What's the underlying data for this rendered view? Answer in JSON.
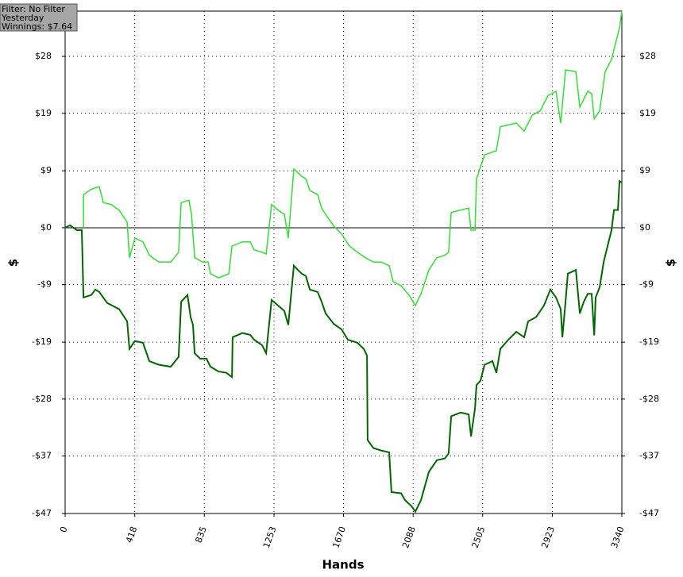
{
  "chart_data": {
    "type": "line",
    "annotations": [
      "Filter: No Filter",
      "Yesterday",
      "Winnings: $7.64"
    ],
    "x_label": "Hands",
    "y_label": "$",
    "xlim": [
      0,
      3340
    ],
    "xticks": [
      0,
      418,
      835,
      1253,
      1670,
      2088,
      2505,
      2923,
      3340
    ],
    "ylim": [
      -46.7,
      35.4
    ],
    "yticks": [
      {
        "value": 28,
        "label": "$28"
      },
      {
        "value": 18.7,
        "label": "$19"
      },
      {
        "value": 9.3,
        "label": "$9"
      },
      {
        "value": 0,
        "label": "$0"
      },
      {
        "value": -9.3,
        "label": "-$9"
      },
      {
        "value": -18.7,
        "label": "-$19"
      },
      {
        "value": -28,
        "label": "-$28"
      },
      {
        "value": -37.3,
        "label": "-$37"
      },
      {
        "value": -46.7,
        "label": "-$47"
      }
    ],
    "grid": true,
    "series": [
      {
        "color": "#33dd33",
        "x": [
          110,
          110,
          157,
          205,
          229,
          276,
          324,
          372,
          386,
          419,
          467,
          505,
          562,
          634,
          681,
          696,
          743,
          758,
          777,
          824,
          858,
          872,
          920,
          982,
          1001,
          1063,
          1110,
          1134,
          1182,
          1206,
          1239,
          1277,
          1315,
          1339,
          1372,
          1420,
          1444,
          1468,
          1515,
          1539,
          1563,
          1611,
          1658,
          1706,
          1754,
          1801,
          1849,
          1896,
          1944,
          1968,
          2016,
          2063,
          2101,
          2135,
          2182,
          2230,
          2278,
          2301,
          2316,
          2373,
          2421,
          2435,
          2459,
          2468,
          2516,
          2587,
          2611,
          2659,
          2707,
          2754,
          2802,
          2850,
          2897,
          2945,
          2973,
          3002,
          3064,
          3088,
          3135,
          3159,
          3174,
          3207,
          3240,
          3278,
          3302,
          3326,
          3340
        ],
        "values": [
          0,
          5.4,
          6.3,
          6.7,
          4.1,
          3.8,
          2.9,
          0.9,
          -4.9,
          -1.7,
          -2.3,
          -4.5,
          -5.6,
          -5.6,
          -4.0,
          4.1,
          4.5,
          2.2,
          -4.9,
          -5.6,
          -5.6,
          -7.5,
          -8.2,
          -7.5,
          -3.0,
          -2.3,
          -2.3,
          -3.6,
          -4.0,
          -4.3,
          3.8,
          2.9,
          2.2,
          -1.7,
          9.6,
          8.4,
          8.0,
          6.1,
          5.4,
          3.2,
          2.2,
          0.3,
          -1.0,
          -3.0,
          -4.0,
          -4.9,
          -5.6,
          -5.6,
          -6.2,
          -8.8,
          -9.5,
          -11.0,
          -12.7,
          -10.8,
          -6.9,
          -4.9,
          -4.5,
          -4.0,
          2.5,
          2.9,
          3.2,
          -0.4,
          -0.4,
          8.0,
          11.9,
          12.6,
          16.5,
          16.8,
          17.1,
          15.8,
          18.4,
          19.1,
          21.6,
          22.3,
          17.1,
          25.8,
          25.5,
          19.7,
          22.3,
          21.9,
          17.8,
          19.1,
          25.5,
          27.5,
          30.1,
          32.7,
          35.4
        ]
      },
      {
        "color": "#006600",
        "x": [
          0,
          29,
          71,
          100,
          110,
          157,
          181,
          205,
          253,
          324,
          372,
          386,
          419,
          467,
          505,
          562,
          634,
          681,
          696,
          734,
          753,
          767,
          777,
          810,
          848,
          872,
          920,
          967,
          1001,
          1005,
          1063,
          1110,
          1134,
          1182,
          1206,
          1239,
          1277,
          1315,
          1339,
          1372,
          1396,
          1420,
          1444,
          1468,
          1515,
          1539,
          1563,
          1611,
          1658,
          1696,
          1754,
          1792,
          1811,
          1815,
          1849,
          1896,
          1944,
          1958,
          2016,
          2039,
          2078,
          2101,
          2135,
          2182,
          2230,
          2278,
          2301,
          2316,
          2373,
          2421,
          2435,
          2459,
          2468,
          2492,
          2516,
          2564,
          2587,
          2611,
          2659,
          2707,
          2754,
          2778,
          2826,
          2873,
          2911,
          2945,
          2973,
          2983,
          3002,
          3016,
          3064,
          3088,
          3112,
          3135,
          3159,
          3174,
          3183,
          3207,
          3231,
          3254,
          3278,
          3293,
          3316,
          3326,
          3340
        ],
        "values": [
          0,
          0.4,
          -0.4,
          -0.4,
          -11.4,
          -11.0,
          -10.1,
          -10.5,
          -12.3,
          -13.3,
          -15.3,
          -19.8,
          -18.5,
          -18.8,
          -21.8,
          -22.4,
          -22.7,
          -21.1,
          -12.1,
          -11.0,
          -14.6,
          -15.9,
          -20.5,
          -21.4,
          -21.4,
          -22.7,
          -23.5,
          -23.7,
          -24.4,
          -17.9,
          -17.2,
          -17.5,
          -18.3,
          -19.2,
          -20.5,
          -11.8,
          -12.7,
          -13.6,
          -15.9,
          -6.2,
          -6.9,
          -7.5,
          -7.9,
          -10.1,
          -10.5,
          -12.1,
          -14.0,
          -15.7,
          -16.6,
          -18.3,
          -18.8,
          -19.8,
          -20.9,
          -34.7,
          -36.0,
          -36.4,
          -36.7,
          -43.2,
          -43.4,
          -44.5,
          -45.5,
          -46.4,
          -44.5,
          -39.9,
          -38.0,
          -37.7,
          -36.9,
          -30.8,
          -30.2,
          -30.5,
          -34.1,
          -29.5,
          -25.7,
          -25.0,
          -22.4,
          -21.8,
          -23.7,
          -19.8,
          -18.3,
          -17.0,
          -17.9,
          -15.3,
          -14.6,
          -12.7,
          -10.1,
          -11.4,
          -13.3,
          -17.9,
          -12.1,
          -7.5,
          -6.9,
          -14.0,
          -12.1,
          -10.8,
          -10.8,
          -17.6,
          -11.4,
          -9.7,
          -5.6,
          -3.0,
          -0.4,
          2.9,
          2.9,
          7.6,
          7.4
        ]
      }
    ]
  }
}
